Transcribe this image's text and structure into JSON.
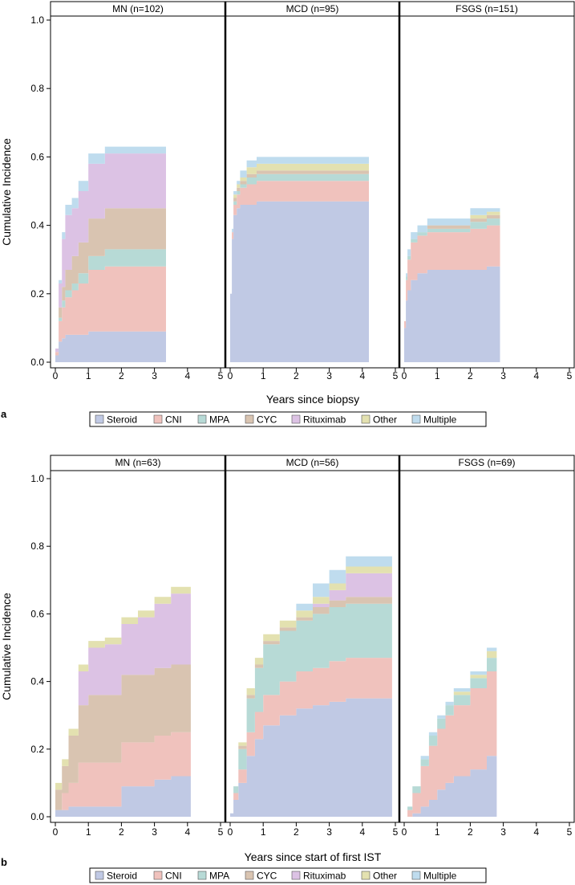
{
  "figure": {
    "y_axis_label": "Cumulative Incidence",
    "legend_labels": [
      "Steroid",
      "CNI",
      "MPA",
      "CYC",
      "Rituximab",
      "Other",
      "Multiple"
    ],
    "colors": {
      "Steroid": "#c0c9e4",
      "CNI": "#f0c2bd",
      "MPA": "#b7dad6",
      "CYC": "#d9c4b1",
      "Rituximab": "#dcc2e4",
      "Other": "#e3e1b0",
      "Multiple": "#bfdcee"
    }
  },
  "chart_data": [
    {
      "panel_label": "a",
      "type": "area",
      "xlabel": "Years since biopsy",
      "ylabel": "Cumulative Incidence",
      "ylim": [
        0,
        1.0
      ],
      "xlim": [
        0,
        5
      ],
      "yticks": [
        "0.0",
        "0.2",
        "0.4",
        "0.6",
        "0.8",
        "1.0"
      ],
      "xticks": [
        "0",
        "1",
        "2",
        "3",
        "4",
        "5"
      ],
      "legend": [
        "Steroid",
        "CNI",
        "MPA",
        "CYC",
        "Rituximab",
        "Other",
        "Multiple"
      ],
      "facets": [
        {
          "title": "MN (n=102)",
          "x": [
            0,
            0.1,
            0.2,
            0.3,
            0.5,
            0.7,
            1.0,
            1.5,
            2.0,
            3.35
          ],
          "series": [
            {
              "name": "Steroid",
              "values": [
                0.02,
                0.06,
                0.07,
                0.08,
                0.08,
                0.08,
                0.09,
                0.09,
                0.09,
                0.09
              ]
            },
            {
              "name": "CNI",
              "values": [
                0.01,
                0.06,
                0.09,
                0.11,
                0.13,
                0.15,
                0.18,
                0.19,
                0.19,
                0.19
              ]
            },
            {
              "name": "MPA",
              "values": [
                0.0,
                0.01,
                0.02,
                0.02,
                0.02,
                0.03,
                0.04,
                0.05,
                0.05,
                0.05
              ]
            },
            {
              "name": "CYC",
              "values": [
                0.0,
                0.03,
                0.04,
                0.06,
                0.08,
                0.09,
                0.11,
                0.12,
                0.12,
                0.12
              ]
            },
            {
              "name": "Rituximab",
              "values": [
                0.01,
                0.07,
                0.14,
                0.16,
                0.14,
                0.15,
                0.16,
                0.16,
                0.16,
                0.16
              ]
            },
            {
              "name": "Other",
              "values": [
                0,
                0,
                0,
                0,
                0,
                0,
                0,
                0,
                0,
                0
              ]
            },
            {
              "name": "Multiple",
              "values": [
                0.0,
                0.01,
                0.02,
                0.03,
                0.03,
                0.03,
                0.03,
                0.02,
                0.02,
                0.02
              ]
            }
          ]
        },
        {
          "title": "MCD (n=95)",
          "x": [
            0,
            0.05,
            0.1,
            0.2,
            0.3,
            0.5,
            0.8,
            1.5,
            4.2
          ],
          "series": [
            {
              "name": "Steroid",
              "values": [
                0.2,
                0.36,
                0.43,
                0.45,
                0.46,
                0.46,
                0.47,
                0.47,
                0.47
              ]
            },
            {
              "name": "CNI",
              "values": [
                0.0,
                0.02,
                0.03,
                0.04,
                0.05,
                0.06,
                0.06,
                0.06,
                0.06
              ]
            },
            {
              "name": "MPA",
              "values": [
                0.0,
                0.0,
                0.01,
                0.01,
                0.01,
                0.02,
                0.02,
                0.02,
                0.02
              ]
            },
            {
              "name": "CYC",
              "values": [
                0.0,
                0.0,
                0.01,
                0.01,
                0.01,
                0.01,
                0.01,
                0.01,
                0.01
              ]
            },
            {
              "name": "Rituximab",
              "values": [
                0,
                0,
                0,
                0,
                0,
                0,
                0,
                0,
                0
              ]
            },
            {
              "name": "Other",
              "values": [
                0.0,
                0.0,
                0.01,
                0.01,
                0.01,
                0.02,
                0.02,
                0.02,
                0.02
              ]
            },
            {
              "name": "Multiple",
              "values": [
                0.0,
                0.01,
                0.01,
                0.01,
                0.02,
                0.02,
                0.02,
                0.02,
                0.02
              ]
            }
          ]
        },
        {
          "title": "FSGS (n=151)",
          "x": [
            0,
            0.05,
            0.1,
            0.2,
            0.4,
            0.7,
            1.0,
            1.5,
            2.0,
            2.5,
            2.9
          ],
          "series": [
            {
              "name": "Steroid",
              "values": [
                0.1,
                0.18,
                0.21,
                0.24,
                0.26,
                0.27,
                0.27,
                0.27,
                0.27,
                0.28,
                0.28
              ]
            },
            {
              "name": "CNI",
              "values": [
                0.02,
                0.06,
                0.09,
                0.11,
                0.11,
                0.11,
                0.11,
                0.11,
                0.12,
                0.12,
                0.13
              ]
            },
            {
              "name": "MPA",
              "values": [
                0.0,
                0.01,
                0.01,
                0.01,
                0.01,
                0.01,
                0.01,
                0.01,
                0.02,
                0.02,
                0.03
              ]
            },
            {
              "name": "CYC",
              "values": [
                0.0,
                0.0,
                0.0,
                0.0,
                0.0,
                0.01,
                0.01,
                0.01,
                0.01,
                0.01,
                0.01
              ]
            },
            {
              "name": "Rituximab",
              "values": [
                0,
                0,
                0,
                0,
                0,
                0,
                0,
                0,
                0,
                0,
                0
              ]
            },
            {
              "name": "Other",
              "values": [
                0.0,
                0.0,
                0.0,
                0.0,
                0.0,
                0.0,
                0.0,
                0.0,
                0.01,
                0.01,
                0.02
              ]
            },
            {
              "name": "Multiple",
              "values": [
                0.0,
                0.01,
                0.02,
                0.02,
                0.02,
                0.02,
                0.02,
                0.02,
                0.02,
                0.01,
                0.01
              ]
            }
          ]
        }
      ]
    },
    {
      "panel_label": "b",
      "type": "area",
      "xlabel": "Years since start of first IST",
      "ylabel": "Cumulative Incidence",
      "ylim": [
        0,
        1.0
      ],
      "xlim": [
        0,
        5
      ],
      "yticks": [
        "0.0",
        "0.2",
        "0.4",
        "0.6",
        "0.8",
        "1.0"
      ],
      "xticks": [
        "0",
        "1",
        "2",
        "3",
        "4",
        "5"
      ],
      "legend": [
        "Steroid",
        "CNI",
        "MPA",
        "CYC",
        "Rituximab",
        "Other",
        "Multiple"
      ],
      "facets": [
        {
          "title": "MN (n=63)",
          "x": [
            0,
            0.2,
            0.4,
            0.7,
            1.0,
            1.5,
            2.0,
            2.5,
            3.0,
            3.5,
            4.1
          ],
          "series": [
            {
              "name": "Steroid",
              "values": [
                0.02,
                0.02,
                0.03,
                0.03,
                0.03,
                0.03,
                0.09,
                0.09,
                0.11,
                0.12,
                0.12
              ]
            },
            {
              "name": "CNI",
              "values": [
                0.0,
                0.05,
                0.07,
                0.13,
                0.13,
                0.13,
                0.13,
                0.13,
                0.13,
                0.13,
                0.13
              ]
            },
            {
              "name": "MPA",
              "values": [
                0,
                0,
                0,
                0,
                0,
                0,
                0,
                0,
                0,
                0,
                0
              ]
            },
            {
              "name": "CYC",
              "values": [
                0.06,
                0.08,
                0.14,
                0.17,
                0.2,
                0.2,
                0.2,
                0.2,
                0.2,
                0.2,
                0.2
              ]
            },
            {
              "name": "Rituximab",
              "values": [
                0.0,
                0.0,
                0.0,
                0.1,
                0.14,
                0.15,
                0.15,
                0.17,
                0.19,
                0.21,
                0.24
              ]
            },
            {
              "name": "Other",
              "values": [
                0.02,
                0.02,
                0.02,
                0.02,
                0.02,
                0.02,
                0.02,
                0.02,
                0.02,
                0.02,
                0.02
              ]
            },
            {
              "name": "Multiple",
              "values": [
                0,
                0,
                0,
                0,
                0,
                0,
                0,
                0,
                0,
                0,
                0
              ]
            }
          ]
        },
        {
          "title": "MCD (n=56)",
          "x": [
            0,
            0.1,
            0.25,
            0.5,
            0.75,
            1.0,
            1.5,
            2.0,
            2.5,
            3.0,
            3.5,
            4.9
          ],
          "series": [
            {
              "name": "Steroid",
              "values": [
                0.01,
                0.05,
                0.1,
                0.18,
                0.23,
                0.27,
                0.3,
                0.32,
                0.33,
                0.34,
                0.35,
                0.35
              ]
            },
            {
              "name": "CNI",
              "values": [
                0.0,
                0.02,
                0.04,
                0.07,
                0.08,
                0.09,
                0.1,
                0.11,
                0.11,
                0.12,
                0.12,
                0.12
              ]
            },
            {
              "name": "MPA",
              "values": [
                0.0,
                0.02,
                0.06,
                0.1,
                0.13,
                0.15,
                0.15,
                0.15,
                0.16,
                0.16,
                0.16,
                0.16
              ]
            },
            {
              "name": "CYC",
              "values": [
                0.0,
                0.0,
                0.01,
                0.01,
                0.01,
                0.01,
                0.01,
                0.01,
                0.02,
                0.02,
                0.02,
                0.02
              ]
            },
            {
              "name": "Rituximab",
              "values": [
                0.0,
                0.0,
                0.0,
                0.0,
                0.0,
                0.0,
                0.0,
                0.0,
                0.01,
                0.03,
                0.07,
                0.07
              ]
            },
            {
              "name": "Other",
              "values": [
                0.0,
                0.0,
                0.01,
                0.02,
                0.02,
                0.02,
                0.02,
                0.02,
                0.02,
                0.02,
                0.02,
                0.02
              ]
            },
            {
              "name": "Multiple",
              "values": [
                0.0,
                0.0,
                0.0,
                0.0,
                0.0,
                0.0,
                0.0,
                0.02,
                0.04,
                0.04,
                0.03,
                0.03
              ]
            }
          ]
        },
        {
          "title": "FSGS (n=69)",
          "x": [
            0,
            0.1,
            0.25,
            0.5,
            0.75,
            1.0,
            1.25,
            1.5,
            2.0,
            2.5,
            2.8
          ],
          "series": [
            {
              "name": "Steroid",
              "values": [
                0.0,
                0.0,
                0.01,
                0.03,
                0.05,
                0.08,
                0.1,
                0.12,
                0.14,
                0.18,
                0.18
              ]
            },
            {
              "name": "CNI",
              "values": [
                0.0,
                0.02,
                0.06,
                0.12,
                0.16,
                0.18,
                0.2,
                0.21,
                0.24,
                0.25,
                0.25
              ]
            },
            {
              "name": "MPA",
              "values": [
                0.0,
                0.01,
                0.02,
                0.02,
                0.03,
                0.03,
                0.03,
                0.03,
                0.03,
                0.04,
                0.05
              ]
            },
            {
              "name": "CYC",
              "values": [
                0,
                0,
                0,
                0,
                0,
                0,
                0,
                0,
                0,
                0,
                0
              ]
            },
            {
              "name": "Rituximab",
              "values": [
                0,
                0,
                0,
                0,
                0,
                0,
                0,
                0,
                0,
                0,
                0
              ]
            },
            {
              "name": "Other",
              "values": [
                0.0,
                0.0,
                0.0,
                0.0,
                0.0,
                0.0,
                0.0,
                0.01,
                0.01,
                0.02,
                0.02
              ]
            },
            {
              "name": "Multiple",
              "values": [
                0.0,
                0.0,
                0.0,
                0.01,
                0.01,
                0.01,
                0.01,
                0.01,
                0.01,
                0.01,
                0.01
              ]
            }
          ]
        }
      ]
    }
  ]
}
